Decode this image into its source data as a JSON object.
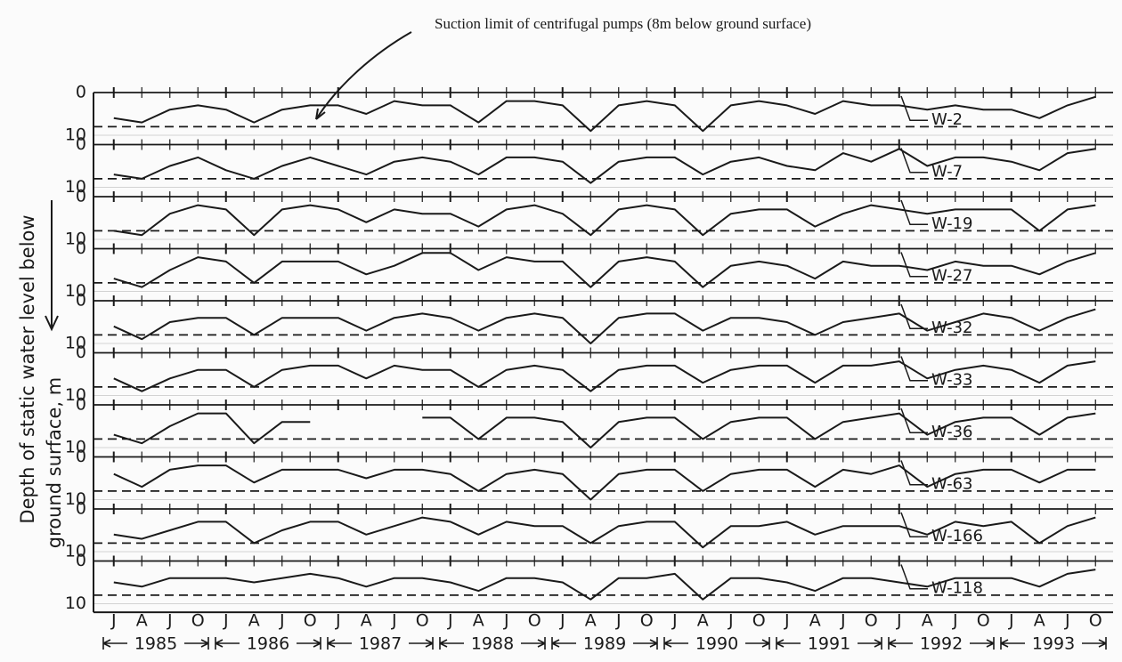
{
  "chart_data": {
    "type": "line",
    "annotation": "Suction limit of centrifugal pumps (8m below ground surface)",
    "suction_limit": 8,
    "y_label": [
      "Depth of static water level below",
      "ground surface, m"
    ],
    "color": "#1a1a1a",
    "reversed_y": true,
    "ylim": [
      0,
      12
    ],
    "yticks": [
      0,
      10
    ],
    "categories": [
      "J",
      "A",
      "J",
      "O",
      "J",
      "A",
      "J",
      "O",
      "J",
      "A",
      "J",
      "O",
      "J",
      "A",
      "J",
      "O",
      "J",
      "A",
      "J",
      "O",
      "J",
      "A",
      "J",
      "O",
      "J",
      "A",
      "J",
      "O",
      "J",
      "A",
      "J",
      "O",
      "J",
      "A",
      "J",
      "O"
    ],
    "years": [
      "1985",
      "1986",
      "1987",
      "1988",
      "1989",
      "1990",
      "1991",
      "1992",
      "1993"
    ],
    "series": [
      {
        "name": "W-2",
        "values": [
          6,
          7,
          4,
          3,
          4,
          7,
          4,
          3,
          3,
          5,
          2,
          3,
          3,
          7,
          2,
          2,
          3,
          9,
          3,
          2,
          3,
          9,
          3,
          2,
          3,
          5,
          2,
          3,
          3,
          4,
          3,
          4,
          4,
          6,
          3,
          1
        ]
      },
      {
        "name": "W-7",
        "values": [
          7,
          8,
          5,
          3,
          6,
          8,
          5,
          3,
          5,
          7,
          4,
          3,
          4,
          7,
          3,
          3,
          4,
          9,
          4,
          3,
          3,
          7,
          4,
          3,
          5,
          6,
          2,
          4,
          1,
          5,
          3,
          3,
          4,
          6,
          2,
          1
        ]
      },
      {
        "name": "W-19",
        "values": [
          8,
          9,
          4,
          2,
          3,
          9,
          3,
          2,
          3,
          6,
          3,
          4,
          4,
          7,
          3,
          2,
          4,
          9,
          3,
          2,
          3,
          9,
          4,
          3,
          3,
          7,
          4,
          2,
          3,
          4,
          3,
          3,
          3,
          8,
          3,
          2
        ]
      },
      {
        "name": "W-27",
        "values": [
          7,
          9,
          5,
          2,
          3,
          8,
          3,
          3,
          3,
          6,
          4,
          1,
          1,
          5,
          2,
          3,
          3,
          9,
          3,
          2,
          3,
          9,
          4,
          3,
          4,
          7,
          3,
          4,
          4,
          5,
          3,
          4,
          4,
          6,
          3,
          1
        ]
      },
      {
        "name": "W-32",
        "values": [
          6,
          9,
          5,
          4,
          4,
          8,
          4,
          4,
          4,
          7,
          4,
          3,
          4,
          7,
          4,
          3,
          4,
          10,
          4,
          3,
          3,
          7,
          4,
          4,
          5,
          8,
          5,
          4,
          3,
          7,
          5,
          3,
          4,
          7,
          4,
          2
        ]
      },
      {
        "name": "W-33",
        "values": [
          6,
          9,
          6,
          4,
          4,
          8,
          4,
          3,
          3,
          6,
          3,
          4,
          4,
          8,
          4,
          3,
          4,
          9,
          4,
          3,
          3,
          7,
          4,
          3,
          3,
          7,
          3,
          3,
          2,
          6,
          4,
          3,
          4,
          7,
          3,
          2
        ]
      },
      {
        "name": "W-36",
        "values": [
          7,
          9,
          5,
          2,
          2,
          9,
          4,
          4,
          null,
          null,
          null,
          3,
          3,
          8,
          3,
          3,
          4,
          10,
          4,
          3,
          3,
          8,
          4,
          3,
          3,
          8,
          4,
          3,
          2,
          7,
          4,
          3,
          3,
          7,
          3,
          2
        ]
      },
      {
        "name": "W-63",
        "values": [
          4,
          7,
          3,
          2,
          2,
          6,
          3,
          3,
          3,
          5,
          3,
          3,
          4,
          8,
          4,
          3,
          4,
          10,
          4,
          3,
          3,
          8,
          4,
          3,
          3,
          7,
          3,
          4,
          2,
          7,
          4,
          3,
          3,
          6,
          3,
          3
        ]
      },
      {
        "name": "W-166",
        "values": [
          6,
          7,
          5,
          3,
          3,
          8,
          5,
          3,
          3,
          6,
          4,
          2,
          3,
          6,
          3,
          4,
          4,
          8,
          4,
          3,
          3,
          9,
          4,
          4,
          3,
          6,
          4,
          4,
          4,
          6,
          3,
          4,
          3,
          8,
          4,
          2
        ]
      },
      {
        "name": "W-118",
        "values": [
          5,
          6,
          4,
          4,
          4,
          5,
          4,
          3,
          4,
          6,
          4,
          4,
          5,
          7,
          4,
          4,
          5,
          9,
          4,
          4,
          3,
          9,
          4,
          4,
          5,
          7,
          4,
          4,
          5,
          6,
          4,
          4,
          4,
          6,
          3,
          2
        ]
      }
    ]
  }
}
